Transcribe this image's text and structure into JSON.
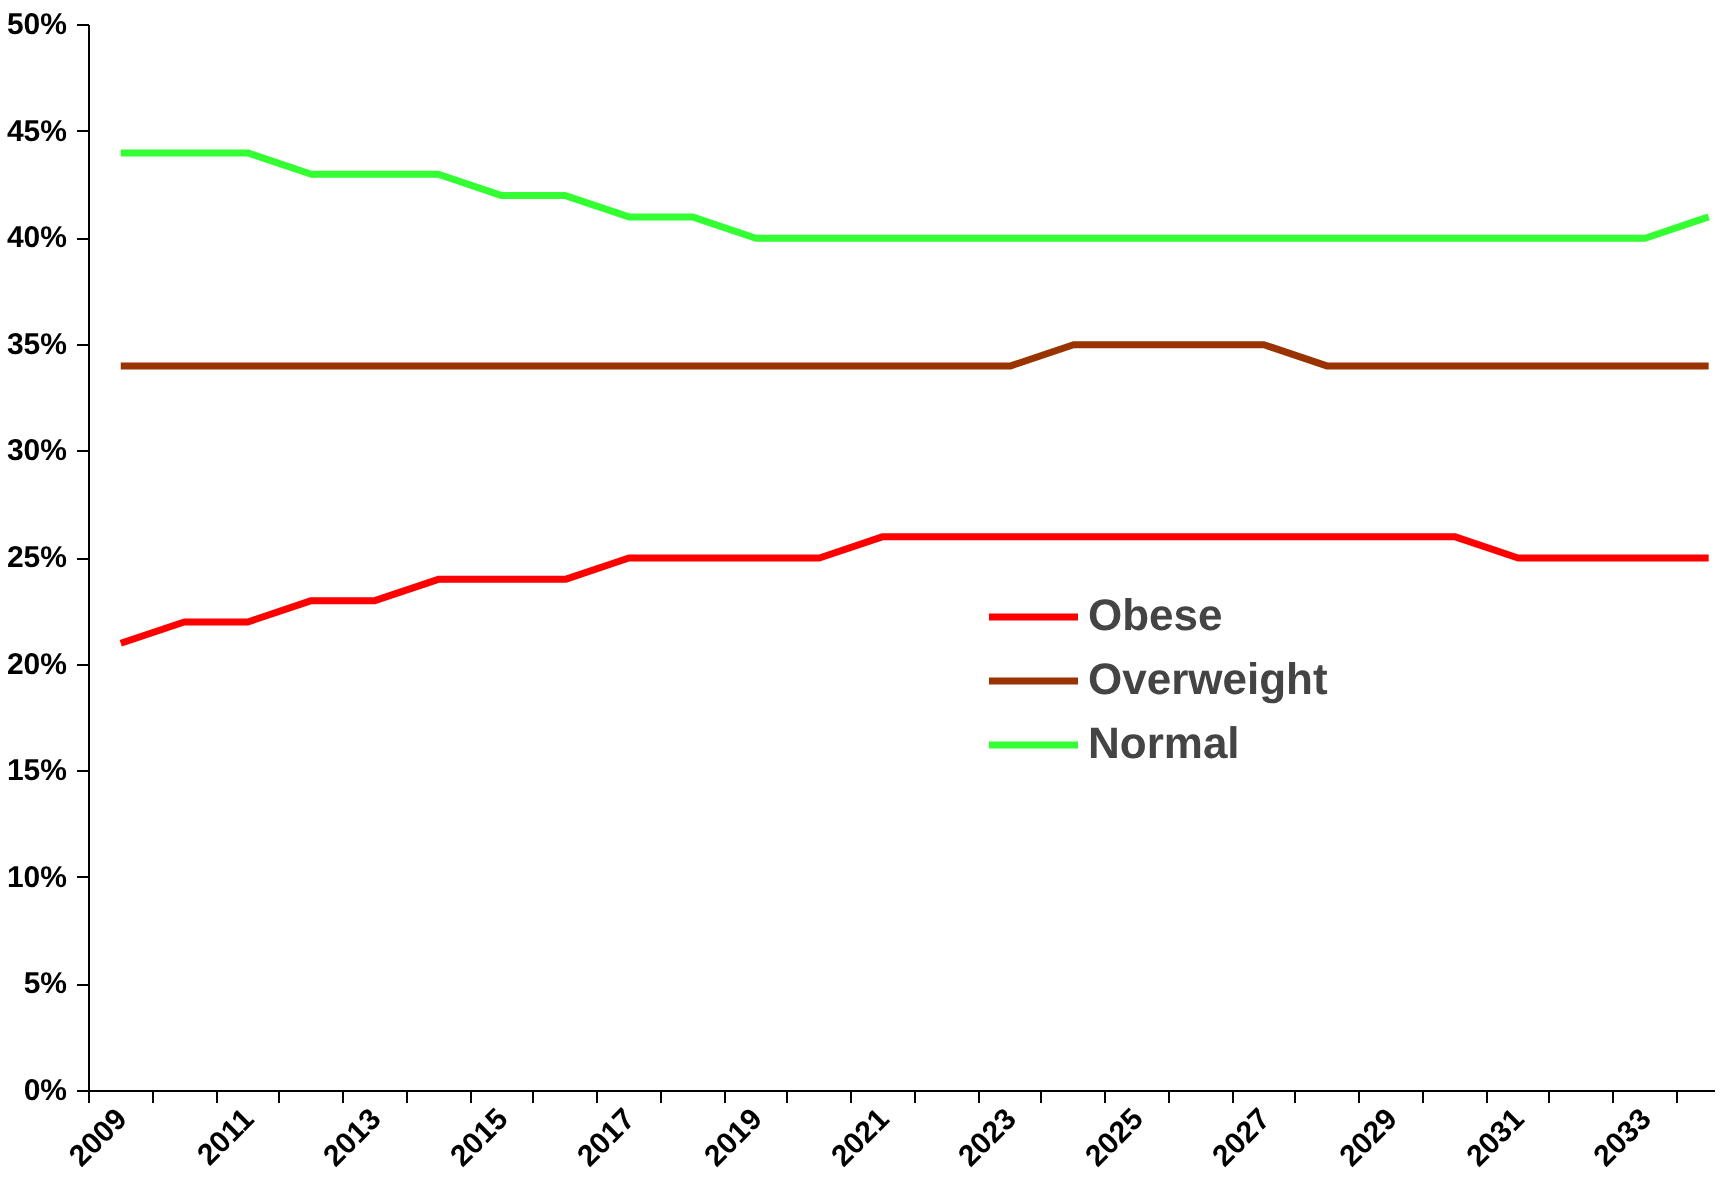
{
  "chart_data": {
    "type": "line",
    "categories": [
      "2009",
      null,
      "2011",
      null,
      "2013",
      null,
      "2015",
      null,
      "2017",
      null,
      "2019",
      null,
      "2021",
      null,
      "2023",
      null,
      "2025",
      null,
      "2027",
      null,
      "2029",
      null,
      "2031",
      null,
      "2033",
      null
    ],
    "series": [
      {
        "name": "Obese",
        "color": "#ff0000",
        "values": [
          21,
          22,
          22,
          23,
          23,
          24,
          24,
          24,
          25,
          25,
          25,
          25,
          26,
          26,
          26,
          26,
          26,
          26,
          26,
          26,
          26,
          26,
          25,
          25,
          25,
          25
        ]
      },
      {
        "name": "Overweight",
        "color": "#993300",
        "values": [
          34,
          34,
          34,
          34,
          34,
          34,
          34,
          34,
          34,
          34,
          34,
          34,
          34,
          34,
          34,
          35,
          35,
          35,
          35,
          34,
          34,
          34,
          34,
          34,
          34,
          34
        ]
      },
      {
        "name": "Normal",
        "color": "#33ff33",
        "values": [
          44,
          44,
          44,
          43,
          43,
          43,
          42,
          42,
          41,
          41,
          40,
          40,
          40,
          40,
          40,
          40,
          40,
          40,
          40,
          40,
          40,
          40,
          40,
          40,
          40,
          41
        ]
      }
    ],
    "ylim": [
      0,
      50
    ],
    "yticks": [
      {
        "value": 0,
        "label": "0%"
      },
      {
        "value": 5,
        "label": "5%"
      },
      {
        "value": 10,
        "label": "10%"
      },
      {
        "value": 15,
        "label": "15%"
      },
      {
        "value": 20,
        "label": "20%"
      },
      {
        "value": 25,
        "label": "25%"
      },
      {
        "value": 30,
        "label": "30%"
      },
      {
        "value": 35,
        "label": "35%"
      },
      {
        "value": 40,
        "label": "40%"
      },
      {
        "value": 45,
        "label": "45%"
      },
      {
        "value": 50,
        "label": "50%"
      }
    ],
    "grid": false,
    "legend": "right",
    "marker": "none",
    "line_style": "solid"
  }
}
